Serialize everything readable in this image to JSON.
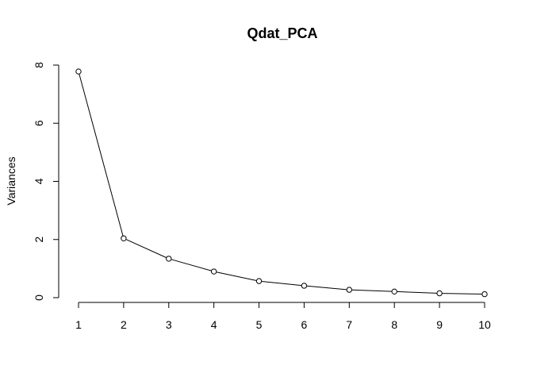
{
  "chart_data": {
    "type": "line",
    "title": "Qdat_PCA",
    "xlabel": "",
    "ylabel": "Variances",
    "x": [
      1,
      2,
      3,
      4,
      5,
      6,
      7,
      8,
      9,
      10
    ],
    "values": [
      7.78,
      2.04,
      1.34,
      0.9,
      0.57,
      0.41,
      0.27,
      0.21,
      0.15,
      0.12
    ],
    "xlim": [
      1,
      10
    ],
    "ylim": [
      0,
      8
    ],
    "x_ticks": [
      1,
      2,
      3,
      4,
      5,
      6,
      7,
      8,
      9,
      10
    ],
    "y_ticks": [
      0,
      2,
      4,
      6,
      8
    ],
    "marker": "open-circle",
    "line_color": "#000000",
    "grid": false,
    "legend": "none"
  }
}
